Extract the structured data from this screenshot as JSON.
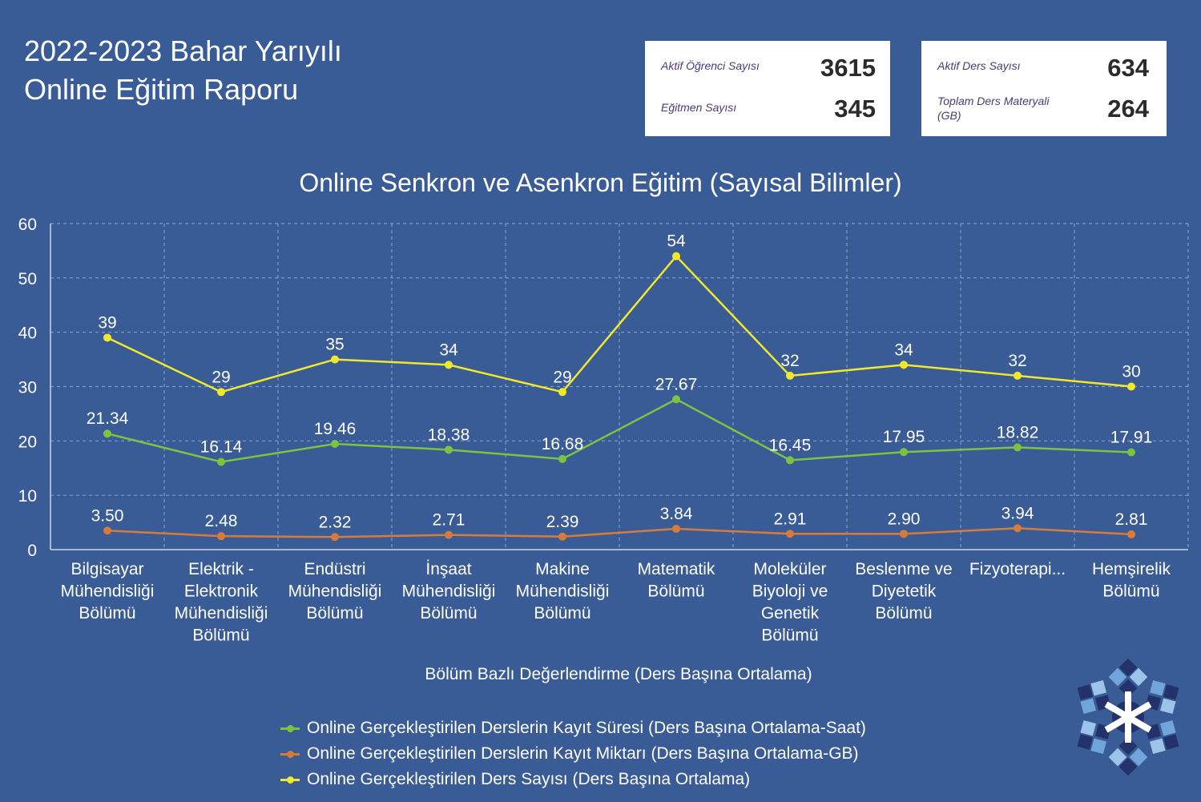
{
  "header": {
    "title_line1": "2022-2023 Bahar Yarıyılı",
    "title_line2": "Online Eğitim Raporu"
  },
  "stats": {
    "card1": [
      {
        "label": "Aktif Öğrenci Sayısı",
        "value": "3615"
      },
      {
        "label": "Eğitmen Sayısı",
        "value": "345"
      }
    ],
    "card2": [
      {
        "label": "Aktif Ders Sayısı",
        "value": "634"
      },
      {
        "label": "Toplam Ders Materyali (GB)",
        "value": "264"
      }
    ]
  },
  "chart_data": {
    "type": "line",
    "title": "Online Senkron ve Asenkron Eğitim (Sayısal Bilimler)",
    "xlabel": "Bölüm Bazlı Değerlendirme (Ders Başına Ortalama)",
    "ylabel": "",
    "ylim": [
      0,
      60
    ],
    "yticks": [
      0,
      10,
      20,
      30,
      40,
      50,
      60
    ],
    "grid": true,
    "legend_position": "bottom",
    "categories": [
      [
        "Bilgisayar",
        "Mühendisliği",
        "Bölümü"
      ],
      [
        "Elektrik -",
        "Elektronik",
        "Mühendisliği",
        "Bölümü"
      ],
      [
        "Endüstri",
        "Mühendisliği",
        "Bölümü"
      ],
      [
        "İnşaat",
        "Mühendisliği",
        "Bölümü"
      ],
      [
        "Makine",
        "Mühendisliği",
        "Bölümü"
      ],
      [
        "Matematik",
        "Bölümü"
      ],
      [
        "Moleküler",
        "Biyoloji ve",
        "Genetik",
        "Bölümü"
      ],
      [
        "Beslenme ve",
        "Diyetetik",
        "Bölümü"
      ],
      [
        "Fizyoterapi..."
      ],
      [
        "Hemşirelik",
        "Bölümü"
      ]
    ],
    "series": [
      {
        "name": "Online Gerçekleştirilen Derslerin Kayıt Süresi (Ders Başına Ortalama-Saat)",
        "color": "#7cc440",
        "values": [
          21.34,
          16.14,
          19.46,
          18.38,
          16.68,
          27.67,
          16.45,
          17.95,
          18.82,
          17.91
        ],
        "labels": [
          "21.34",
          "16.14",
          "19.46",
          "18.38",
          "16.68",
          "27.67",
          "16.45",
          "17.95",
          "18.82",
          "17.91"
        ]
      },
      {
        "name": "Online Gerçekleştirilen Derslerin Kayıt Miktarı (Ders Başına Ortalama-GB)",
        "color": "#d77b3a",
        "values": [
          3.5,
          2.48,
          2.32,
          2.71,
          2.39,
          3.84,
          2.91,
          2.9,
          3.94,
          2.81
        ],
        "labels": [
          "3.50",
          "2.48",
          "2.32",
          "2.71",
          "2.39",
          "3.84",
          "2.91",
          "2.90",
          "3.94",
          "2.81"
        ]
      },
      {
        "name": "Online Gerçekleştirilen Ders Sayısı (Ders Başına Ortalama)",
        "color": "#f2e82a",
        "values": [
          39,
          29,
          35,
          34,
          29,
          54,
          32,
          34,
          32,
          30
        ],
        "labels": [
          "39",
          "29",
          "35",
          "34",
          "29",
          "54",
          "32",
          "34",
          "32",
          "30"
        ]
      }
    ]
  },
  "icons": {
    "logo": "snowflake-logo-icon"
  }
}
